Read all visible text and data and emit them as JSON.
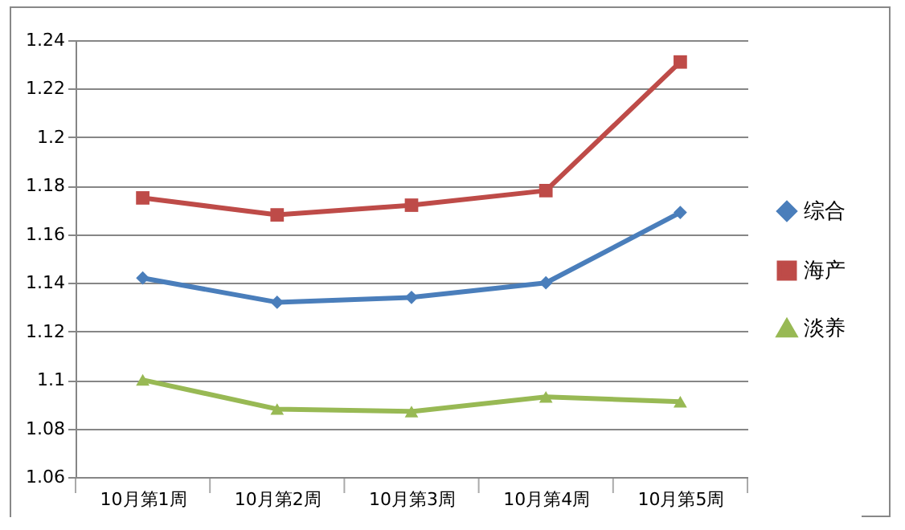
{
  "chart_data": {
    "type": "line",
    "categories": [
      "10月第1周",
      "10月第2周",
      "10月第3周",
      "10月第4周",
      "10月第5周"
    ],
    "series": [
      {
        "name": "综合",
        "color": "#4a7ebb",
        "marker": "diamond",
        "values": [
          1.142,
          1.132,
          1.134,
          1.14,
          1.169
        ]
      },
      {
        "name": "海产",
        "color": "#be4b48",
        "marker": "square",
        "values": [
          1.175,
          1.168,
          1.172,
          1.178,
          1.231
        ]
      },
      {
        "name": "淡养",
        "color": "#98b954",
        "marker": "triangle",
        "values": [
          1.1,
          1.088,
          1.087,
          1.093,
          1.091
        ]
      }
    ],
    "ylim": [
      1.06,
      1.24
    ],
    "yticks": [
      1.06,
      1.08,
      1.1,
      1.12,
      1.14,
      1.16,
      1.18,
      1.2,
      1.22,
      1.24
    ],
    "grid": "y",
    "legend": "right"
  }
}
